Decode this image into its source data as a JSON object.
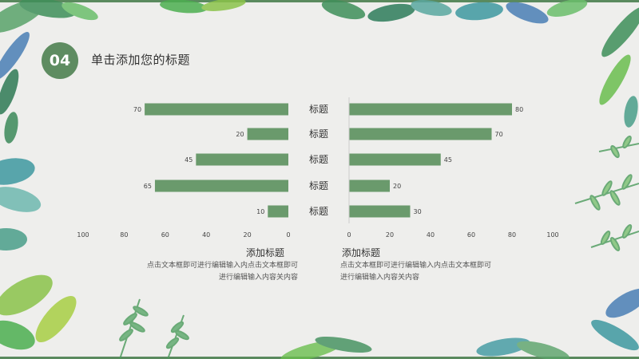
{
  "slide": {
    "number": "04",
    "title": "单击添加您的标题"
  },
  "colors": {
    "accent": "#5e8c61",
    "bar": "#6a9a6c",
    "border": "#5a8a5e",
    "background": "#eeeeec"
  },
  "chart_data": [
    {
      "type": "bar",
      "orientation": "horizontal",
      "direction": "right-to-left",
      "categories": [
        "标题",
        "标题",
        "标题",
        "标题",
        "标题"
      ],
      "values": [
        70,
        20,
        45,
        65,
        10
      ],
      "xlim": [
        0,
        100
      ],
      "xticks": [
        100,
        80,
        60,
        40,
        20,
        0
      ],
      "title": "",
      "xlabel": "",
      "ylabel": "",
      "grid": false
    },
    {
      "type": "bar",
      "orientation": "horizontal",
      "direction": "left-to-right",
      "categories": [
        "标题",
        "标题",
        "标题",
        "标题",
        "标题"
      ],
      "values": [
        80,
        70,
        45,
        20,
        30
      ],
      "xlim": [
        0,
        100
      ],
      "xticks": [
        0,
        20,
        40,
        60,
        80,
        100
      ],
      "title": "",
      "xlabel": "",
      "ylabel": "",
      "grid": false
    }
  ],
  "category_labels": [
    "标题",
    "标题",
    "标题",
    "标题",
    "标题"
  ],
  "descriptions": {
    "left": {
      "title": "添加标题",
      "lines": [
        "点击文本框即可进行编辑输入内点击文本框即可",
        "进行编辑输入内容关内容"
      ]
    },
    "right": {
      "title": "添加标题",
      "lines": [
        "点击文本框即可进行编辑输入内点击文本框即可",
        "进行编辑输入内容关内容"
      ]
    }
  },
  "decorations": [
    "leaf-icon",
    "fern-icon",
    "leaf-icon",
    "fern-icon"
  ]
}
